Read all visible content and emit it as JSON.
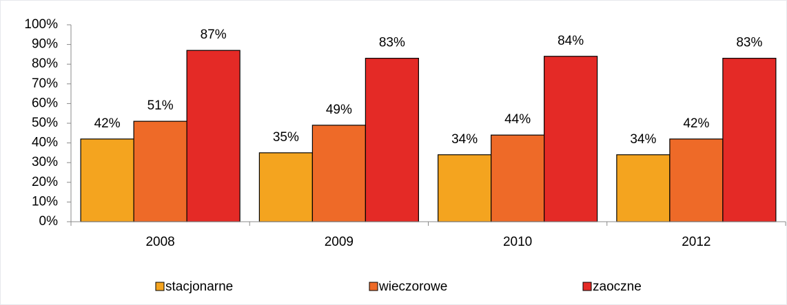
{
  "chart_data": {
    "type": "bar",
    "categories": [
      "2008",
      "2009",
      "2010",
      "2012"
    ],
    "series": [
      {
        "name": "stacjonarne",
        "color": "#f4a41f",
        "values": [
          42,
          35,
          34,
          34
        ],
        "value_labels": [
          "42%",
          "35%",
          "34%",
          "34%"
        ]
      },
      {
        "name": "wieczorowe",
        "color": "#ee6a28",
        "values": [
          51,
          49,
          44,
          42
        ],
        "value_labels": [
          "51%",
          "49%",
          "44%",
          "42%"
        ]
      },
      {
        "name": "zaoczne",
        "color": "#e42a26",
        "values": [
          87,
          83,
          84,
          83
        ],
        "value_labels": [
          "87%",
          "83%",
          "84%",
          "83%"
        ]
      }
    ],
    "ylim": [
      0,
      100
    ],
    "yticks": [
      {
        "value": 0,
        "label": "0%"
      },
      {
        "value": 10,
        "label": "10%"
      },
      {
        "value": 20,
        "label": "20%"
      },
      {
        "value": 30,
        "label": "30%"
      },
      {
        "value": 40,
        "label": "40%"
      },
      {
        "value": 50,
        "label": "50%"
      },
      {
        "value": 60,
        "label": "60%"
      },
      {
        "value": 70,
        "label": "70%"
      },
      {
        "value": 80,
        "label": "80%"
      },
      {
        "value": 90,
        "label": "90%"
      },
      {
        "value": 100,
        "label": "100%"
      }
    ],
    "legend": "bottom"
  }
}
